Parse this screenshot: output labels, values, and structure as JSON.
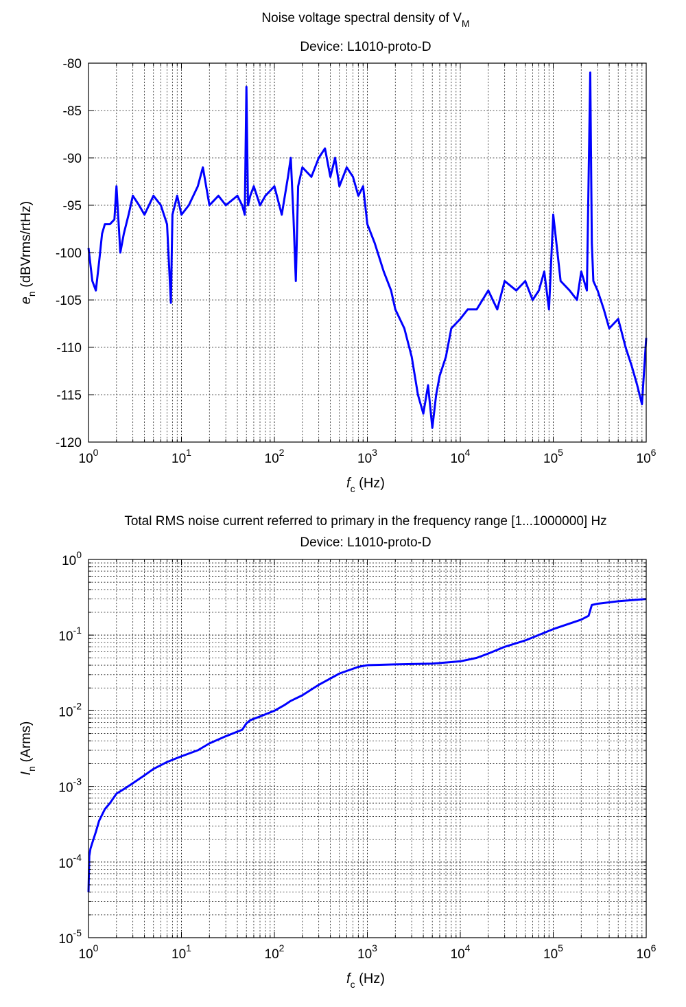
{
  "chart_data": [
    {
      "type": "line",
      "title_main": "Noise voltage spectral density of V",
      "title_sub_script": "M",
      "subtitle": "Device: L1010-proto-D",
      "xlabel_main": "f",
      "xlabel_sub": "c",
      "xlabel_unit": " (Hz)",
      "ylabel_main": "e",
      "ylabel_sub": "n",
      "ylabel_unit": " (dBVrms/rtHz)",
      "xscale": "log",
      "xlim": [
        1,
        1000000
      ],
      "ylim": [
        -120,
        -80
      ],
      "grid": true,
      "line_color": "#0000ff",
      "x_ticks": [
        {
          "base": "10",
          "exp": "0"
        },
        {
          "base": "10",
          "exp": "1"
        },
        {
          "base": "10",
          "exp": "2"
        },
        {
          "base": "10",
          "exp": "3"
        },
        {
          "base": "10",
          "exp": "4"
        },
        {
          "base": "10",
          "exp": "5"
        },
        {
          "base": "10",
          "exp": "6"
        }
      ],
      "y_ticks": [
        "-80",
        "-85",
        "-90",
        "-95",
        "-100",
        "-105",
        "-110",
        "-115",
        "-120"
      ],
      "series": [
        {
          "x": [
            1,
            1.1,
            1.2,
            1.3,
            1.4,
            1.5,
            1.7,
            1.9,
            2,
            2.2,
            2.4,
            2.7,
            3,
            3.5,
            4,
            5,
            6,
            7,
            7.7,
            8,
            9,
            10,
            12,
            15,
            17,
            20,
            25,
            30,
            40,
            45,
            48,
            50,
            52,
            55,
            60,
            70,
            80,
            100,
            120,
            140,
            150,
            160,
            170,
            180,
            200,
            250,
            300,
            350,
            400,
            450,
            500,
            600,
            700,
            800,
            900,
            1000,
            1200,
            1500,
            1800,
            2000,
            2500,
            3000,
            3500,
            4000,
            4500,
            5000,
            5500,
            6000,
            7000,
            8000,
            10000,
            12000,
            15000,
            20000,
            25000,
            30000,
            40000,
            50000,
            60000,
            70000,
            80000,
            90000,
            100000,
            120000,
            150000,
            180000,
            200000,
            230000,
            250000,
            260000,
            270000,
            300000,
            350000,
            400000,
            500000,
            600000,
            700000,
            800000,
            900000,
            1000000
          ],
          "y": [
            -99.5,
            -103,
            -104,
            -101,
            -98,
            -97,
            -97,
            -96.5,
            -93,
            -100,
            -98,
            -96,
            -94,
            -95,
            -96,
            -94,
            -95,
            -97,
            -105.3,
            -96,
            -94,
            -96,
            -95,
            -93,
            -91,
            -95,
            -94,
            -95,
            -94,
            -95,
            -96,
            -82.5,
            -95,
            -94,
            -93,
            -95,
            -94,
            -93,
            -96,
            -92,
            -90,
            -96,
            -103,
            -93,
            -91,
            -92,
            -90,
            -89,
            -92,
            -90,
            -93,
            -91,
            -92,
            -94,
            -93,
            -97,
            -99,
            -102,
            -104,
            -106,
            -108,
            -111,
            -115,
            -117,
            -114,
            -118.5,
            -115,
            -113,
            -111,
            -108,
            -107,
            -106,
            -106,
            -104,
            -106,
            -103,
            -104,
            -103,
            -105,
            -104,
            -102,
            -106,
            -96,
            -103,
            -104,
            -105,
            -102,
            -104,
            -81,
            -99,
            -103,
            -104,
            -106,
            -108,
            -107,
            -110,
            -112,
            -114,
            -116,
            -109
          ]
        }
      ]
    },
    {
      "type": "line",
      "title": "Total RMS noise current referred to primary in the frequency range [1...1000000] Hz",
      "subtitle": "Device: L1010-proto-D",
      "xlabel_main": "f",
      "xlabel_sub": "c",
      "xlabel_unit": " (Hz)",
      "ylabel_main": "I",
      "ylabel_sub": "n",
      "ylabel_unit": " (Arms)",
      "xscale": "log",
      "yscale": "log",
      "xlim": [
        1,
        1000000
      ],
      "ylim": [
        1e-05,
        1
      ],
      "grid": true,
      "line_color": "#0000ff",
      "x_ticks": [
        {
          "base": "10",
          "exp": "0"
        },
        {
          "base": "10",
          "exp": "1"
        },
        {
          "base": "10",
          "exp": "2"
        },
        {
          "base": "10",
          "exp": "3"
        },
        {
          "base": "10",
          "exp": "4"
        },
        {
          "base": "10",
          "exp": "5"
        },
        {
          "base": "10",
          "exp": "6"
        }
      ],
      "y_ticks": [
        {
          "base": "10",
          "exp": "0"
        },
        {
          "base": "10",
          "exp": "-1"
        },
        {
          "base": "10",
          "exp": "-2"
        },
        {
          "base": "10",
          "exp": "-3"
        },
        {
          "base": "10",
          "exp": "-4"
        },
        {
          "base": "10",
          "exp": "-5"
        }
      ],
      "series": [
        {
          "x": [
            1,
            1.02,
            1.05,
            1.1,
            1.2,
            1.3,
            1.5,
            1.7,
            2,
            2.5,
            3,
            4,
            5,
            7,
            10,
            15,
            20,
            30,
            45,
            50,
            55,
            70,
            100,
            130,
            150,
            200,
            300,
            500,
            800,
            1000,
            2000,
            5000,
            10000,
            15000,
            20000,
            30000,
            50000,
            100000,
            200000,
            240000,
            260000,
            300000,
            500000,
            1000000
          ],
          "y": [
            4e-05,
            0.00012,
            0.00015,
            0.00018,
            0.00025,
            0.00035,
            0.0005,
            0.0006,
            0.0008,
            0.00095,
            0.0011,
            0.0014,
            0.0017,
            0.0021,
            0.0025,
            0.003,
            0.0037,
            0.0046,
            0.0056,
            0.0068,
            0.0075,
            0.0084,
            0.01,
            0.012,
            0.0135,
            0.016,
            0.022,
            0.031,
            0.038,
            0.04,
            0.041,
            0.042,
            0.045,
            0.05,
            0.057,
            0.07,
            0.085,
            0.12,
            0.16,
            0.18,
            0.25,
            0.26,
            0.28,
            0.3
          ]
        }
      ]
    }
  ]
}
